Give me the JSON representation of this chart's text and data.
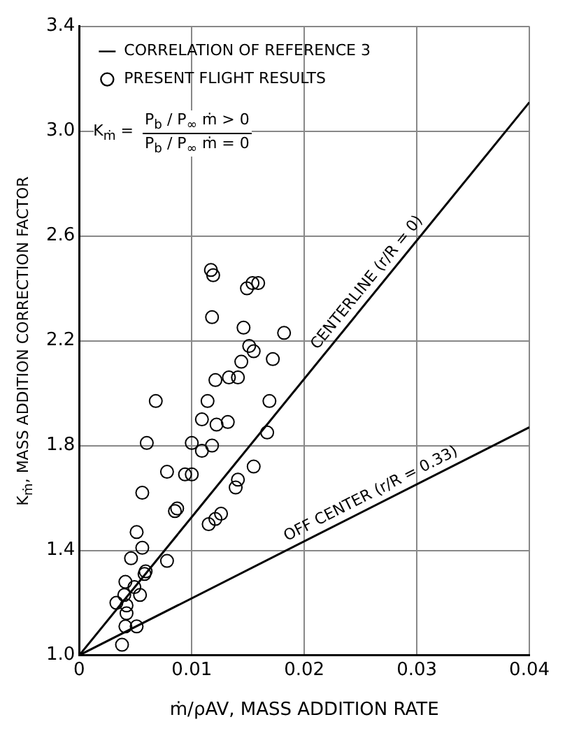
{
  "chart_data": {
    "type": "scatter",
    "xlabel": "ṁ/ρAV, MASS ADDITION RATE",
    "ylabel": "K$_{ṁ}$, MASS ADDITION CORRECTION FACTOR",
    "xlim": [
      0,
      0.04
    ],
    "xticks": [
      0,
      0.01,
      0.02,
      0.03,
      0.04
    ],
    "ylim": [
      1.0,
      3.4
    ],
    "yticks": [
      {
        "value": 1.0,
        "label": "1.0"
      },
      1.4,
      1.8,
      2.2,
      2.6,
      {
        "value": 3.0,
        "label": "3.0"
      },
      3.4
    ],
    "grid": true,
    "legend": "top left",
    "marker": "circle",
    "series": [
      {
        "name": "CORRELATION OF REFERENCE 3",
        "type": "line",
        "color": "#000000",
        "marker": "none",
        "x": [
          0,
          0.04
        ],
        "values": [
          1.0,
          3.11
        ]
      },
      {
        "type": "line",
        "color": "#000000",
        "marker": "none",
        "x": [
          0,
          0.04
        ],
        "values": [
          1.0,
          1.87
        ]
      },
      {
        "name": "PRESENT FLIGHT RESULTS",
        "type": "scatter",
        "color": "#000000",
        "x": [
          0.0117,
          0.0119,
          0.0154,
          0.0159,
          0.0149,
          0.0118,
          0.0146,
          0.0182,
          0.0151,
          0.0155,
          0.0172,
          0.0144,
          0.0133,
          0.0141,
          0.0121,
          0.0068,
          0.0114,
          0.0169,
          0.0109,
          0.0122,
          0.0132,
          0.0167,
          0.006,
          0.01,
          0.0109,
          0.0118,
          0.0155,
          0.0078,
          0.0094,
          0.01,
          0.0141,
          0.0139,
          0.0056,
          0.0087,
          0.0085,
          0.0126,
          0.0121,
          0.0115,
          0.0051,
          0.0056,
          0.0046,
          0.0078,
          0.0059,
          0.0058,
          0.0041,
          0.0049,
          0.004,
          0.0054,
          0.0033,
          0.0042,
          0.0042,
          0.0041,
          0.0051,
          0.0038
        ],
        "values": [
          2.47,
          2.45,
          2.42,
          2.42,
          2.4,
          2.29,
          2.25,
          2.23,
          2.18,
          2.16,
          2.13,
          2.12,
          2.06,
          2.06,
          2.05,
          1.97,
          1.97,
          1.97,
          1.9,
          1.88,
          1.89,
          1.85,
          1.81,
          1.81,
          1.78,
          1.8,
          1.72,
          1.7,
          1.69,
          1.69,
          1.67,
          1.64,
          1.62,
          1.56,
          1.55,
          1.54,
          1.52,
          1.5,
          1.47,
          1.41,
          1.37,
          1.36,
          1.32,
          1.31,
          1.28,
          1.26,
          1.23,
          1.23,
          1.2,
          1.19,
          1.16,
          1.11,
          1.11,
          1.04
        ]
      }
    ],
    "annotations": [
      "CENTERLINE (r/R = 0)",
      "OFF CENTER (r/R = 0.33)",
      "K$_{ṁ}$ =",
      "P$_{b}$ / P$_{∞}$ ṁ > 0",
      "P$_{b}$ / P$_{∞}$ ṁ = 0"
    ]
  }
}
